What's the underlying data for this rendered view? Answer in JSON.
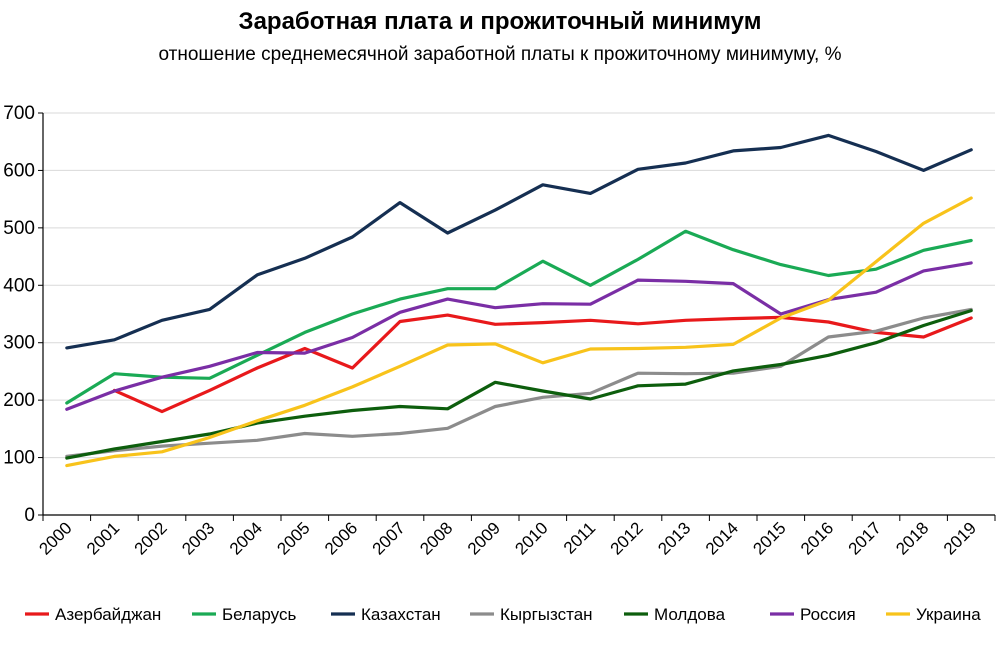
{
  "chart_data": {
    "type": "line",
    "title": "Заработная плата и прожиточный минимум",
    "subtitle": "отношение среднемесячной заработной платы к прожиточному минимуму, %",
    "xlabel": "",
    "ylabel": "",
    "ylim": [
      0,
      700
    ],
    "yticks": [
      "0",
      "100",
      "200",
      "300",
      "400",
      "500",
      "600",
      "700"
    ],
    "grid": "horizontal",
    "legend_position": "bottom",
    "x": [
      "2000",
      "2001",
      "2002",
      "2003",
      "2004",
      "2005",
      "2006",
      "2007",
      "2008",
      "2009",
      "2010",
      "2011",
      "2012",
      "2013",
      "2014",
      "2015",
      "2016",
      "2017",
      "2018",
      "2019"
    ],
    "series": [
      {
        "name": "Азербайджан",
        "color": "#e8191b",
        "values": [
          null,
          217,
          180,
          217,
          256,
          290,
          256,
          337,
          348,
          332,
          335,
          339,
          333,
          339,
          342,
          344,
          336,
          318,
          310,
          343
        ]
      },
      {
        "name": "Беларусь",
        "color": "#1aaa55",
        "values": [
          195,
          246,
          240,
          238,
          278,
          318,
          350,
          376,
          394,
          394,
          442,
          400,
          445,
          494,
          462,
          436,
          417,
          428,
          461,
          478
        ]
      },
      {
        "name": "Казахстан",
        "color": "#152f52",
        "values": [
          291,
          305,
          339,
          358,
          418,
          447,
          484,
          544,
          491,
          531,
          575,
          560,
          602,
          613,
          634,
          640,
          661,
          633,
          600,
          636
        ]
      },
      {
        "name": "Кыргызстан",
        "color": "#8c8c8c",
        "values": [
          102,
          112,
          120,
          125,
          130,
          142,
          137,
          142,
          151,
          189,
          205,
          212,
          247,
          246,
          247,
          259,
          310,
          320,
          343,
          358
        ]
      },
      {
        "name": "Молдова",
        "color": "#0d5e0d",
        "values": [
          99,
          115,
          128,
          141,
          160,
          172,
          182,
          189,
          185,
          231,
          216,
          202,
          225,
          228,
          251,
          262,
          278,
          300,
          330,
          356
        ]
      },
      {
        "name": "Россия",
        "color": "#7a2ea5",
        "values": [
          184,
          216,
          240,
          259,
          283,
          282,
          309,
          353,
          376,
          361,
          368,
          367,
          409,
          407,
          403,
          350,
          375,
          388,
          425,
          439
        ]
      },
      {
        "name": "Украина",
        "color": "#f8c31b",
        "values": [
          86,
          102,
          110,
          135,
          164,
          191,
          223,
          259,
          296,
          298,
          265,
          289,
          290,
          292,
          297,
          343,
          374,
          441,
          508,
          552
        ]
      }
    ]
  }
}
